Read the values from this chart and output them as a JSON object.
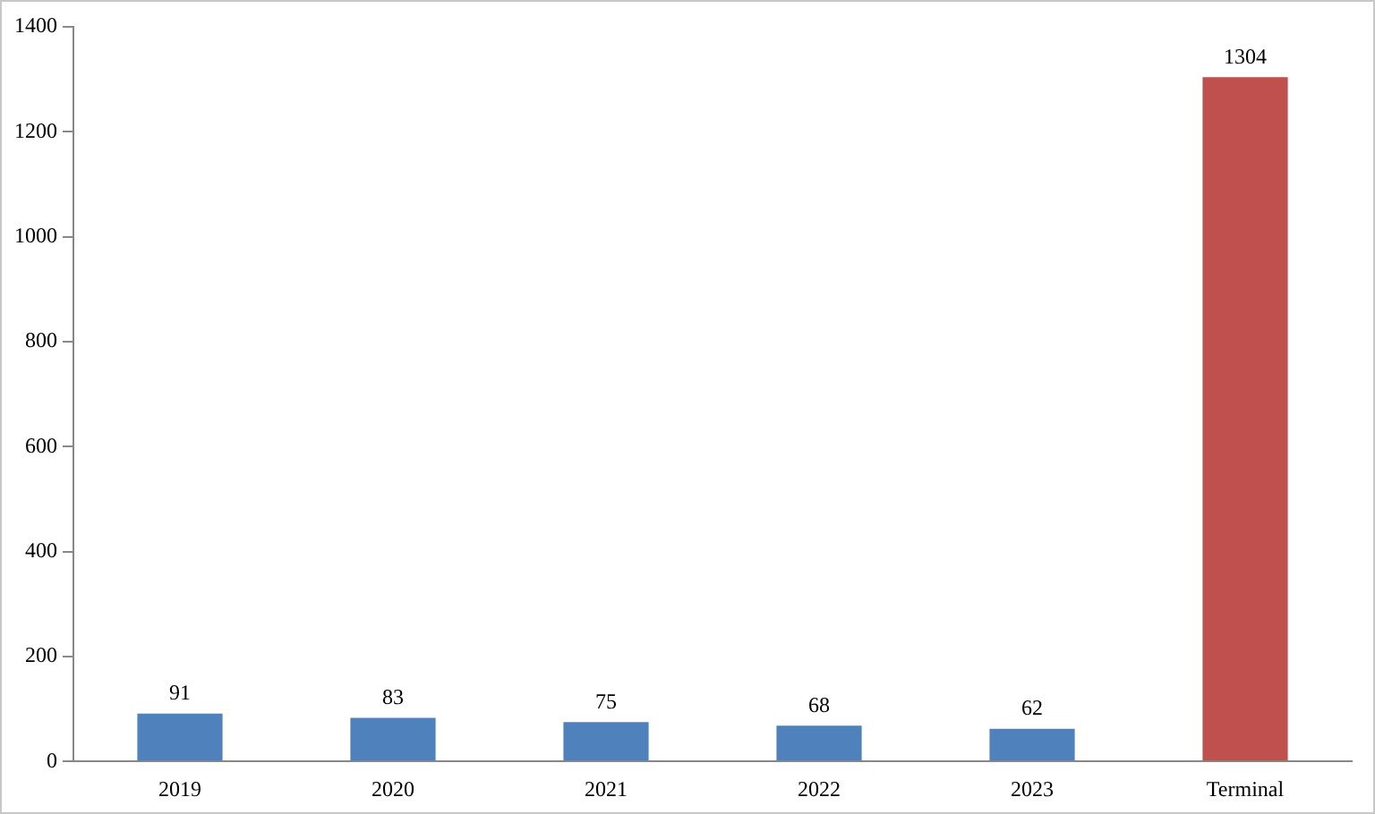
{
  "chart_data": {
    "type": "bar",
    "categories": [
      "2019",
      "2020",
      "2021",
      "2022",
      "2023",
      "Terminal"
    ],
    "values": [
      91,
      83,
      75,
      68,
      62,
      1304
    ],
    "colors": [
      "#4f81bd",
      "#4f81bd",
      "#4f81bd",
      "#4f81bd",
      "#4f81bd",
      "#c0504d"
    ],
    "ylim": [
      0,
      1400
    ],
    "yticks": [
      0,
      200,
      400,
      600,
      800,
      1000,
      1200,
      1400
    ],
    "grid": false,
    "legend": false,
    "data_labels": true
  }
}
